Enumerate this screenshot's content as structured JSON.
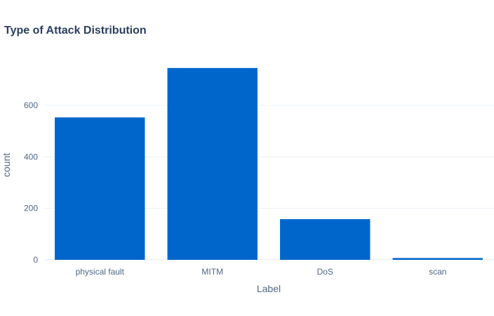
{
  "chart_data": {
    "type": "bar",
    "title": "Type of Attack Distribution",
    "xlabel": "Label",
    "ylabel": "count",
    "categories": [
      "physical fault",
      "MITM",
      "DoS",
      "scan"
    ],
    "values": [
      553,
      745,
      158,
      7
    ],
    "ylim": [
      0,
      780
    ],
    "yticks": [
      0,
      200,
      400,
      600
    ],
    "ytick_labels": [
      "0",
      "200",
      "400",
      "600"
    ],
    "grid": true,
    "legend": "none",
    "bar_color": "#0066cc",
    "grid_color": "#ebf0f8"
  }
}
